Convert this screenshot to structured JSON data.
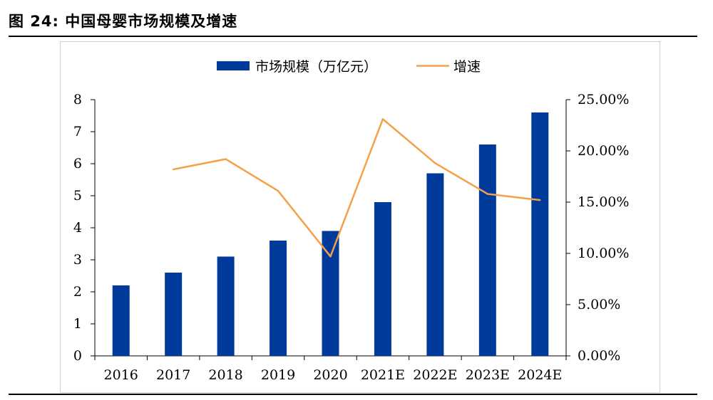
{
  "figure": {
    "title": "图 24: 中国母婴市场规模及增速"
  },
  "chart_data": {
    "type": "bar",
    "categories": [
      "2016",
      "2017",
      "2018",
      "2019",
      "2020",
      "2021E",
      "2022E",
      "2023E",
      "2024E"
    ],
    "series": [
      {
        "name": "市场规模（万亿元）",
        "type": "bar",
        "axis": "left",
        "color": "#003a9b",
        "values": [
          2.2,
          2.6,
          3.1,
          3.6,
          3.9,
          4.8,
          5.7,
          6.6,
          7.6
        ]
      },
      {
        "name": "增速",
        "type": "line",
        "axis": "right",
        "color": "#f5a04a",
        "values": [
          null,
          18.2,
          19.2,
          16.1,
          9.7,
          23.1,
          18.8,
          15.8,
          15.2
        ]
      }
    ],
    "y_left": {
      "min": 0,
      "max": 8,
      "ticks": [
        "0",
        "1",
        "2",
        "3",
        "4",
        "5",
        "6",
        "7",
        "8"
      ]
    },
    "y_right": {
      "min": 0,
      "max": 25,
      "ticks": [
        "0.00%",
        "5.00%",
        "10.00%",
        "15.00%",
        "20.00%",
        "25.00%"
      ]
    },
    "legend_position": "top",
    "grid": false
  }
}
